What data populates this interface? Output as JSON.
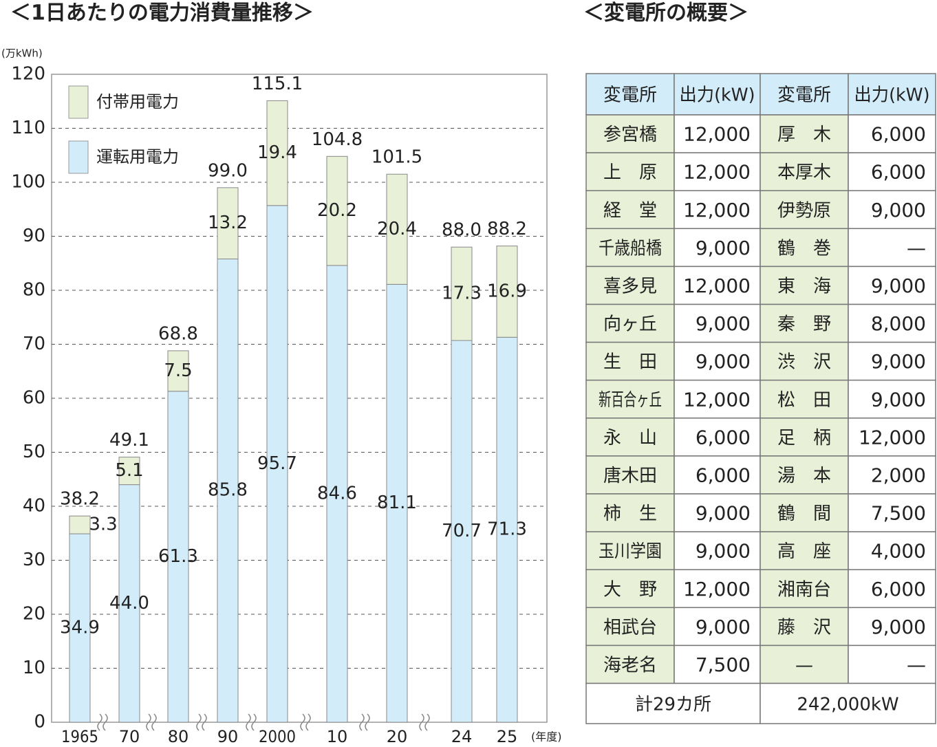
{
  "chart_data": {
    "type": "stacked-bar",
    "title": "＜1日あたりの電力消費量推移＞",
    "y_label": "(万kWh)",
    "x_label": "(年度)",
    "categories": [
      "1965",
      "70",
      "80",
      "90",
      "2000",
      "10",
      "20",
      "24",
      "25"
    ],
    "series": [
      {
        "name": "運転用電力",
        "color": "#d3ecf9",
        "values": [
          34.9,
          44.0,
          61.3,
          85.8,
          95.7,
          84.6,
          81.1,
          70.7,
          71.3
        ],
        "value_labels": [
          "34.9",
          "44.0",
          "61.3",
          "85.8",
          "95.7",
          "84.6",
          "81.1",
          "70.7",
          "71.3"
        ]
      },
      {
        "name": "付帯用電力",
        "color": "#e8f0d8",
        "values": [
          3.3,
          5.1,
          7.5,
          13.2,
          19.4,
          20.2,
          20.4,
          17.3,
          16.9
        ],
        "value_labels": [
          "3.3",
          "5.1",
          "7.5",
          "13.2",
          "19.4",
          "20.2",
          "20.4",
          "17.3",
          "16.9"
        ]
      }
    ],
    "totals": [
      38.2,
      49.1,
      68.8,
      99.0,
      115.1,
      104.8,
      101.5,
      88.0,
      88.2
    ],
    "total_labels": [
      "38.2",
      "49.1",
      "68.8",
      "99.0",
      "115.1",
      "104.8",
      "101.5",
      "88.0",
      "88.2"
    ],
    "ylim": [
      0,
      120
    ],
    "yticks": [
      0,
      10,
      20,
      30,
      40,
      50,
      60,
      70,
      80,
      90,
      100,
      110,
      120
    ],
    "grid": true
  },
  "table": {
    "title": "＜変電所の概要＞",
    "header": [
      "変電所",
      "出力(kW)",
      "変電所",
      "出力(kW)"
    ],
    "rows": [
      [
        "参宮橋",
        "12,000",
        "厚　木",
        "6,000"
      ],
      [
        "上　原",
        "12,000",
        "本厚木",
        "6,000"
      ],
      [
        "経　堂",
        "12,000",
        "伊勢原",
        "9,000"
      ],
      [
        "千歳船橋",
        "9,000",
        "鶴　巻",
        "—"
      ],
      [
        "喜多見",
        "12,000",
        "東　海",
        "9,000"
      ],
      [
        "向ヶ丘",
        "9,000",
        "秦　野",
        "8,000"
      ],
      [
        "生　田",
        "9,000",
        "渋　沢",
        "9,000"
      ],
      [
        "新百合ヶ丘",
        "12,000",
        "松　田",
        "9,000"
      ],
      [
        "永　山",
        "6,000",
        "足　柄",
        "12,000"
      ],
      [
        "唐木田",
        "6,000",
        "湯　本",
        "2,000"
      ],
      [
        "柿　生",
        "9,000",
        "鶴　間",
        "7,500"
      ],
      [
        "玉川学園",
        "9,000",
        "高　座",
        "4,000"
      ],
      [
        "大　野",
        "12,000",
        "湘南台",
        "6,000"
      ],
      [
        "相武台",
        "9,000",
        "藤　沢",
        "9,000"
      ],
      [
        "海老名",
        "7,500",
        "—",
        "—"
      ]
    ],
    "footer": [
      "計29カ所",
      "242,000kW"
    ]
  }
}
